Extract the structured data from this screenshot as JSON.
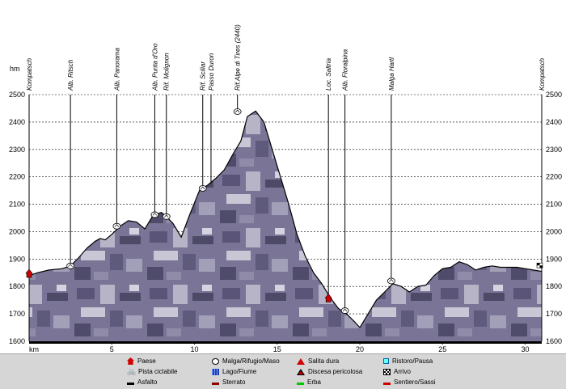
{
  "chart_data": {
    "type": "area",
    "title": "",
    "xlabel": "km",
    "ylabel": "hm",
    "xlim": [
      0,
      31
    ],
    "ylim": [
      1600,
      2500
    ],
    "x_ticks": [
      "5",
      "10",
      "15",
      "20",
      "25",
      "30"
    ],
    "y_ticks": [
      "1600",
      "1700",
      "1800",
      "1900",
      "2000",
      "2100",
      "2200",
      "2300",
      "2400",
      "2500"
    ],
    "grid": "horizontal dashed",
    "profile": {
      "x": [
        0,
        0.5,
        1.2,
        2,
        2.5,
        3,
        3.5,
        4,
        4.3,
        4.6,
        5,
        5.5,
        6,
        6.5,
        7,
        7.5,
        8,
        8.3,
        8.7,
        9.2,
        9.7,
        10.3,
        10.8,
        11.3,
        11.8,
        12.3,
        12.8,
        13.2,
        13.7,
        14.2,
        14.7,
        15.2,
        15.7,
        16.2,
        16.7,
        17.2,
        17.7,
        18.2,
        18.7,
        19.2,
        19.7,
        20,
        20.5,
        21,
        21.5,
        22,
        22.5,
        23,
        23.5,
        24,
        24.5,
        25,
        25.5,
        26,
        26.5,
        27,
        27.5,
        28,
        28.5,
        29,
        29.5,
        30,
        30.5,
        31
      ],
      "y": [
        1840,
        1850,
        1860,
        1865,
        1875,
        1905,
        1940,
        1965,
        1975,
        1970,
        1990,
        2020,
        2040,
        2035,
        2010,
        2060,
        2070,
        2055,
        2030,
        1980,
        2060,
        2150,
        2170,
        2195,
        2225,
        2280,
        2330,
        2420,
        2440,
        2400,
        2300,
        2200,
        2100,
        1990,
        1910,
        1850,
        1810,
        1760,
        1720,
        1700,
        1670,
        1650,
        1700,
        1750,
        1780,
        1810,
        1800,
        1780,
        1800,
        1805,
        1840,
        1865,
        1870,
        1890,
        1880,
        1860,
        1870,
        1875,
        1870,
        1870,
        1870,
        1865,
        1860,
        1855
      ]
    },
    "points": [
      {
        "name": "Kompatsch",
        "km": 0,
        "alt": 1845,
        "icon": "paese"
      },
      {
        "name": "Alb. Ritsch",
        "km": 2.5,
        "alt": 1875,
        "icon": "malga"
      },
      {
        "name": "Alb. Panorama",
        "km": 5.3,
        "alt": 2020,
        "icon": "malga"
      },
      {
        "name": "Alb. Punta d'Oro",
        "km": 7.6,
        "alt": 2062,
        "icon": "malga"
      },
      {
        "name": "Rif. Molignon",
        "km": 8.3,
        "alt": 2055,
        "icon": "malga"
      },
      {
        "name": "Rif. Sciliar",
        "km": 10.5,
        "alt": 2158,
        "icon": "malga"
      },
      {
        "name": "Passo Duron",
        "km": 11,
        "alt": 2175,
        "icon": "none"
      },
      {
        "name": "Rif.Alpe di Tires (2440)",
        "km": 12.6,
        "alt": 2438,
        "icon": "malga"
      },
      {
        "name": "Loc. Saltria",
        "km": 18.1,
        "alt": 1755,
        "icon": "paese"
      },
      {
        "name": "Alb. Floralpina",
        "km": 19.1,
        "alt": 1712,
        "icon": "malga"
      },
      {
        "name": "Malga Hartl",
        "km": 21.9,
        "alt": 1820,
        "icon": "malga"
      },
      {
        "name": "Kompatsch",
        "km": 31,
        "alt": 1862,
        "icon": "arrivo"
      }
    ]
  },
  "legend": {
    "paese": "Paese",
    "pista": "Pista ciclabile",
    "asfalto": "Asfalto",
    "malga": "Malga/Rifugio/Maso",
    "lago": "Lago/Fiume",
    "sterrato": "Sterrato",
    "salita": "Salita dura",
    "discesa": "Discesa pericolosa",
    "erba": "Erba",
    "ristoro": "Ristoro/Pausa",
    "arrivo": "Arrivo",
    "sentiero": "Sentiero/Sassi"
  },
  "colors": {
    "paese": "#d00000",
    "asfalto": "#000000",
    "sterrato": "#8b0000",
    "erba": "#00c800",
    "sentiero": "#d00000",
    "terrain_fill": "#6f6a88",
    "legend_bg": "#d6d6d6"
  }
}
